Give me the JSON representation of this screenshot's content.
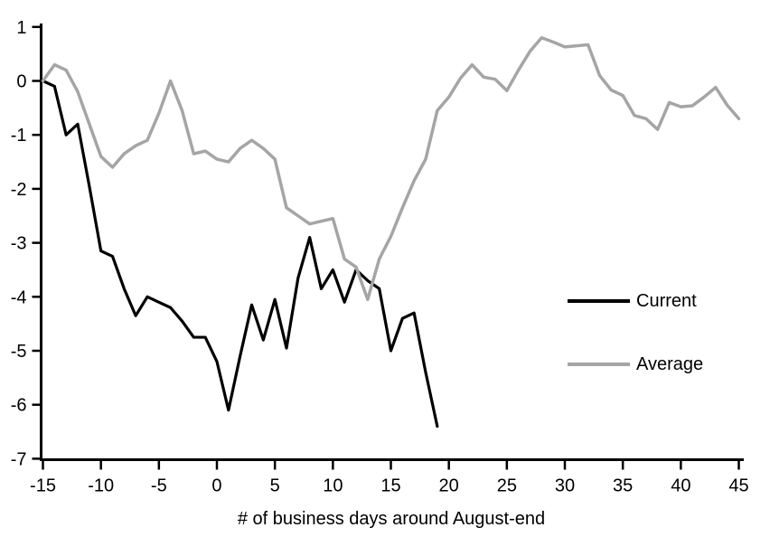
{
  "chart_data": {
    "type": "line",
    "title": "",
    "xlabel": "# of business days around August-end",
    "ylabel": "",
    "xlim": [
      -15,
      45
    ],
    "ylim": [
      -7,
      1
    ],
    "x_ticks": [
      -15,
      -10,
      -5,
      0,
      5,
      10,
      15,
      20,
      25,
      30,
      35,
      40,
      45
    ],
    "y_ticks": [
      1,
      0,
      -1,
      -2,
      -3,
      -4,
      -5,
      -6,
      -7
    ],
    "grid": false,
    "legend_position": "center-right",
    "axis_color": "#000000",
    "series": [
      {
        "name": "Current",
        "color": "#000000",
        "x_start": -15,
        "x_step": 1,
        "values": [
          0.0,
          -0.1,
          -1.0,
          -0.8,
          -1.95,
          -3.15,
          -3.25,
          -3.85,
          -4.35,
          -4.0,
          -4.1,
          -4.2,
          -4.45,
          -4.75,
          -4.75,
          -5.2,
          -6.1,
          -5.1,
          -4.15,
          -4.8,
          -4.05,
          -4.95,
          -3.65,
          -2.9,
          -3.85,
          -3.5,
          -4.1,
          -3.5,
          -3.7,
          -3.85,
          -5.0,
          -4.4,
          -4.3,
          -5.4,
          -6.4
        ]
      },
      {
        "name": "Average",
        "color": "#a5a5a5",
        "x_start": -15,
        "x_step": 1,
        "values": [
          0.0,
          0.3,
          0.2,
          -0.2,
          -0.8,
          -1.4,
          -1.6,
          -1.35,
          -1.2,
          -1.1,
          -0.6,
          0.0,
          -0.55,
          -1.35,
          -1.3,
          -1.45,
          -1.5,
          -1.25,
          -1.1,
          -1.25,
          -1.45,
          -2.35,
          -2.5,
          -2.65,
          -2.6,
          -2.55,
          -3.3,
          -3.45,
          -4.05,
          -3.3,
          -2.88,
          -2.35,
          -1.85,
          -1.45,
          -0.55,
          -0.3,
          0.05,
          0.3,
          0.07,
          0.03,
          -0.18,
          0.2,
          0.55,
          0.8,
          0.72,
          0.63,
          0.65,
          0.67,
          0.1,
          -0.17,
          -0.27,
          -0.64,
          -0.7,
          -0.9,
          -0.4,
          -0.48,
          -0.46,
          -0.3,
          -0.12,
          -0.45,
          -0.7
        ]
      }
    ]
  }
}
